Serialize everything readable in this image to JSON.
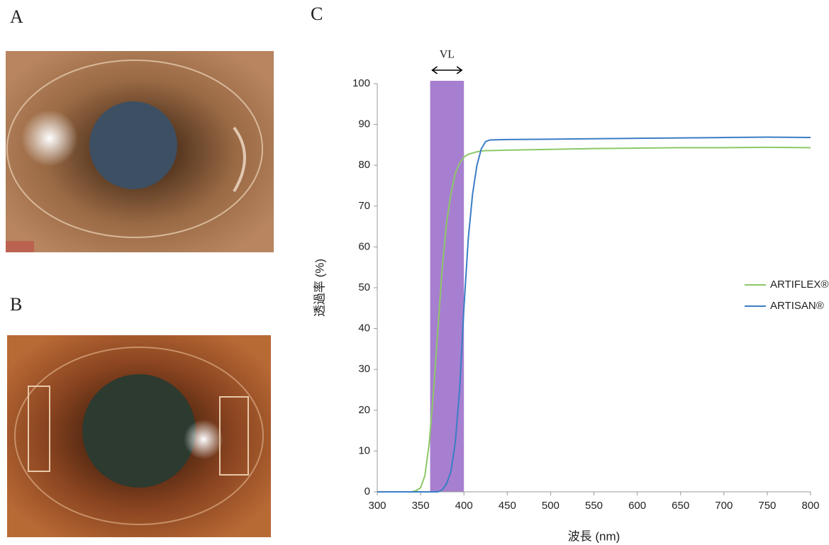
{
  "panels": {
    "a": "A",
    "b": "B",
    "c": "C"
  },
  "chart_data": {
    "type": "line",
    "x_label": "波長 (nm)",
    "y_label": "透過率 (%)",
    "x": [
      300,
      340,
      345,
      350,
      355,
      360,
      365,
      370,
      375,
      380,
      385,
      390,
      395,
      400,
      405,
      410,
      415,
      420,
      425,
      430,
      450,
      500,
      550,
      600,
      650,
      700,
      750,
      800
    ],
    "series": [
      {
        "name": "ARTIFLEX®",
        "color": "#8cc866",
        "values": [
          0,
          0,
          0.3,
          1,
          4,
          12,
          25,
          40,
          55,
          66,
          73,
          78,
          80.5,
          82,
          82.7,
          83,
          83.3,
          83.5,
          83.6,
          83.6,
          83.7,
          83.9,
          84.1,
          84.2,
          84.3,
          84.3,
          84.4,
          84.3
        ]
      },
      {
        "name": "ARTISAN®",
        "color": "#3a7dc4",
        "values": [
          0,
          0,
          0,
          0,
          0,
          0,
          0,
          0,
          0.5,
          2,
          5,
          12,
          25,
          45,
          62,
          73,
          80,
          84,
          85.8,
          86.2,
          86.3,
          86.4,
          86.5,
          86.6,
          86.7,
          86.8,
          86.9,
          86.8
        ]
      }
    ],
    "band": {
      "label": "VL",
      "range": [
        361,
        400
      ],
      "color": "#a77fd0"
    },
    "xlim": [
      300,
      800
    ],
    "xticks": [
      300,
      350,
      400,
      450,
      500,
      550,
      600,
      650,
      700,
      750,
      800
    ],
    "ylim": [
      0,
      100
    ],
    "yticks": [
      0,
      10,
      20,
      30,
      40,
      50,
      60,
      70,
      80,
      90,
      100
    ],
    "grid": false,
    "legend": "right"
  }
}
